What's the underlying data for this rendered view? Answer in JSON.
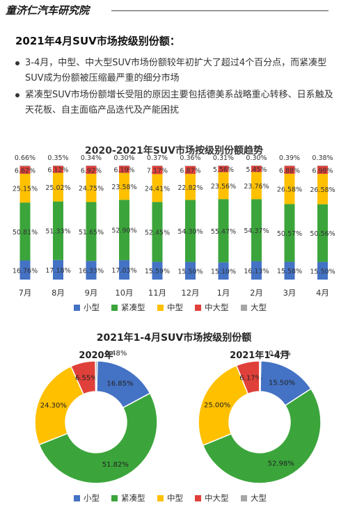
{
  "header": {
    "brand": "童济仁汽车研究院"
  },
  "section": {
    "title": "2021年4月SUV市场按级别份额：",
    "bullets": [
      "3-4月，中型、中大型SUV市场份额较年初扩大了超过4个百分点，而紧凑型SUV成为份额被压缩最严重的细分市场",
      "紧凑型SUV市场份额增长受阻的原因主要包括德美系战略重心转移、日系触及天花板、自主面临产品迭代及产能困扰"
    ]
  },
  "legend": {
    "items": [
      {
        "label": "小型",
        "color": "#4472C4"
      },
      {
        "label": "紧凑型",
        "color": "#3BA53B"
      },
      {
        "label": "中型",
        "color": "#FFC000"
      },
      {
        "label": "中大型",
        "color": "#E0403A"
      },
      {
        "label": "大型",
        "color": "#A6A6A6"
      }
    ]
  },
  "chart_data": [
    {
      "type": "bar",
      "stacked": true,
      "title": "2020-2021年SUV市场按级别份额趋势",
      "categories": [
        "7月",
        "8月",
        "9月",
        "10月",
        "11月",
        "12月",
        "1月",
        "2月",
        "3月",
        "4月"
      ],
      "series": [
        {
          "name": "小型",
          "color": "#4472C4",
          "values": [
            16.76,
            17.18,
            16.33,
            17.03,
            15.59,
            15.5,
            15.1,
            16.13,
            15.58,
            15.5
          ],
          "labels": [
            "16.76%",
            "17.18%",
            "16.33%",
            "17.03%",
            "15.59%",
            "15.50%",
            "15.10%",
            "16.13%",
            "15.58%",
            "15.50%"
          ]
        },
        {
          "name": "紧凑型",
          "color": "#3BA53B",
          "values": [
            50.81,
            51.33,
            51.65,
            52.9,
            52.45,
            54.3,
            55.47,
            54.37,
            50.57,
            50.56
          ],
          "labels": [
            "50.81%",
            "51.33%",
            "51.65%",
            "52.90%",
            "52.45%",
            "54.30%",
            "55.47%",
            "54.37%",
            "50.57%",
            "50.56%"
          ]
        },
        {
          "name": "中型",
          "color": "#FFC000",
          "values": [
            25.15,
            25.02,
            24.75,
            23.58,
            24.41,
            22.82,
            23.56,
            23.76,
            26.58,
            26.58
          ],
          "labels": [
            "25.15%",
            "25.02%",
            "24.75%",
            "23.58%",
            "24.41%",
            "22.82%",
            "23.56%",
            "23.76%",
            "26.58%",
            "26.58%"
          ]
        },
        {
          "name": "中大型",
          "color": "#E0403A",
          "values": [
            6.62,
            6.12,
            6.92,
            6.19,
            7.17,
            6.87,
            5.56,
            5.45,
            6.88,
            6.98
          ],
          "labels": [
            "6.62%",
            "6.12%",
            "6.92%",
            "6.19%",
            "7.17%",
            "6.87%",
            "5.56%",
            "5.45%",
            "6.88%",
            "6.98%"
          ]
        },
        {
          "name": "大型",
          "color": "#A6A6A6",
          "values": [
            0.66,
            0.35,
            0.34,
            0.3,
            0.37,
            0.36,
            0.31,
            0.3,
            0.39,
            0.38
          ],
          "labels": [
            "0.66%",
            "0.35%",
            "0.34%",
            "0.30%",
            "0.37%",
            "0.36%",
            "0.31%",
            "0.30%",
            "0.39%",
            "0.38%"
          ]
        }
      ],
      "ylim": [
        0,
        100
      ],
      "grid": false,
      "legend": "bottom"
    },
    {
      "type": "pie",
      "donut": true,
      "title": "2021年1-4月SUV市场按级别份额",
      "subtitle": "2020年",
      "categories": [
        "小型",
        "紧凑型",
        "中型",
        "中大型",
        "大型"
      ],
      "values": [
        16.85,
        51.82,
        24.3,
        6.55,
        0.48
      ],
      "labels": [
        "16.85%",
        "51.82%",
        "24.30%",
        "6.55%",
        "0.48%"
      ],
      "colors": [
        "#4472C4",
        "#3BA53B",
        "#FFC000",
        "#E0403A",
        "#A6A6A6"
      ],
      "legend": "bottom"
    },
    {
      "type": "pie",
      "donut": true,
      "subtitle": "2021年1-4月",
      "categories": [
        "小型",
        "紧凑型",
        "中型",
        "中大型",
        "大型"
      ],
      "values": [
        15.5,
        52.98,
        25.0,
        6.17,
        0.34
      ],
      "labels": [
        "15.50%",
        "52.98%",
        "25.00%",
        "6.17%",
        "0.34%"
      ],
      "colors": [
        "#4472C4",
        "#3BA53B",
        "#FFC000",
        "#E0403A",
        "#A6A6A6"
      ],
      "legend": "bottom"
    }
  ]
}
